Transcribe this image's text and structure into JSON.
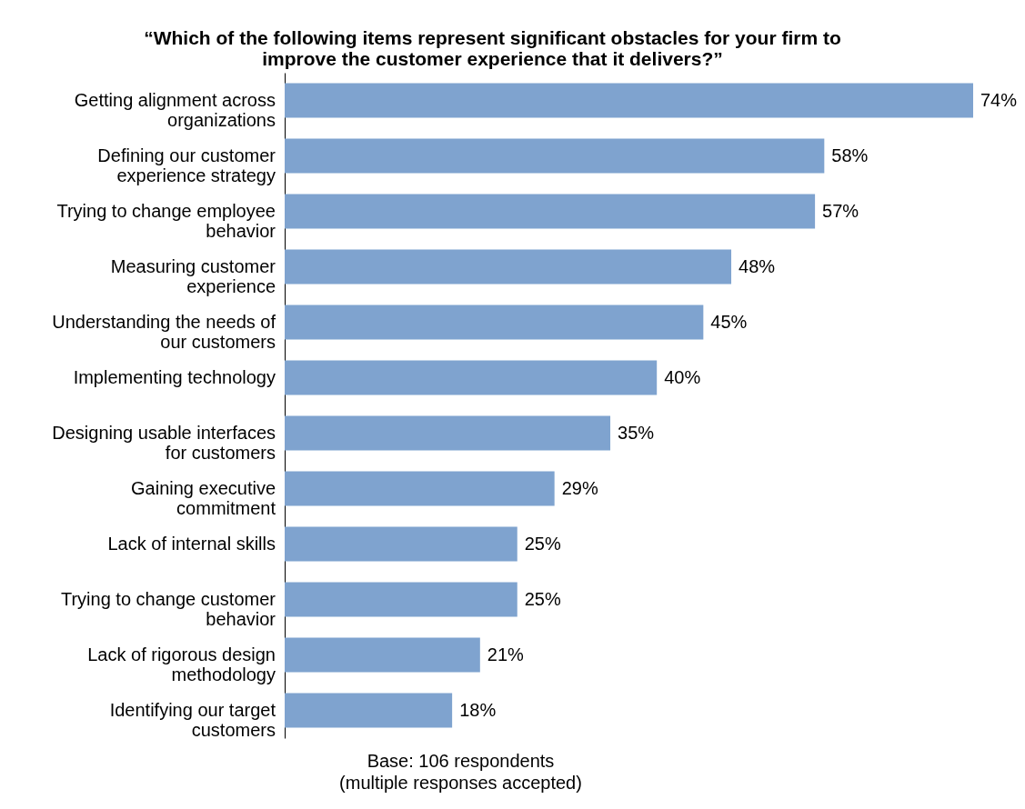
{
  "chart_data": {
    "type": "bar",
    "orientation": "horizontal",
    "title": "“Which of the following items represent significant obstacles for your firm to improve the customer experience that it delivers?”",
    "categories": [
      "Getting alignment across organizations",
      "Defining our customer experience strategy",
      "Trying to change employee behavior",
      "Measuring customer experience",
      "Understanding the needs of our customers",
      "Implementing technology",
      "Designing usable interfaces for customers",
      "Gaining executive commitment",
      "Lack of internal skills",
      "Trying to change customer behavior",
      "Lack of rigorous design methodology",
      "Identifying our target customers"
    ],
    "values": [
      74,
      58,
      57,
      48,
      45,
      40,
      35,
      29,
      25,
      25,
      21,
      18
    ],
    "value_labels": [
      "74%",
      "58%",
      "57%",
      "48%",
      "45%",
      "40%",
      "35%",
      "29%",
      "25%",
      "25%",
      "21%",
      "18%"
    ],
    "color": "#7fa3cf",
    "annotations": [
      "Base: 106 respondents",
      "(multiple responses accepted)"
    ],
    "grid": false
  }
}
